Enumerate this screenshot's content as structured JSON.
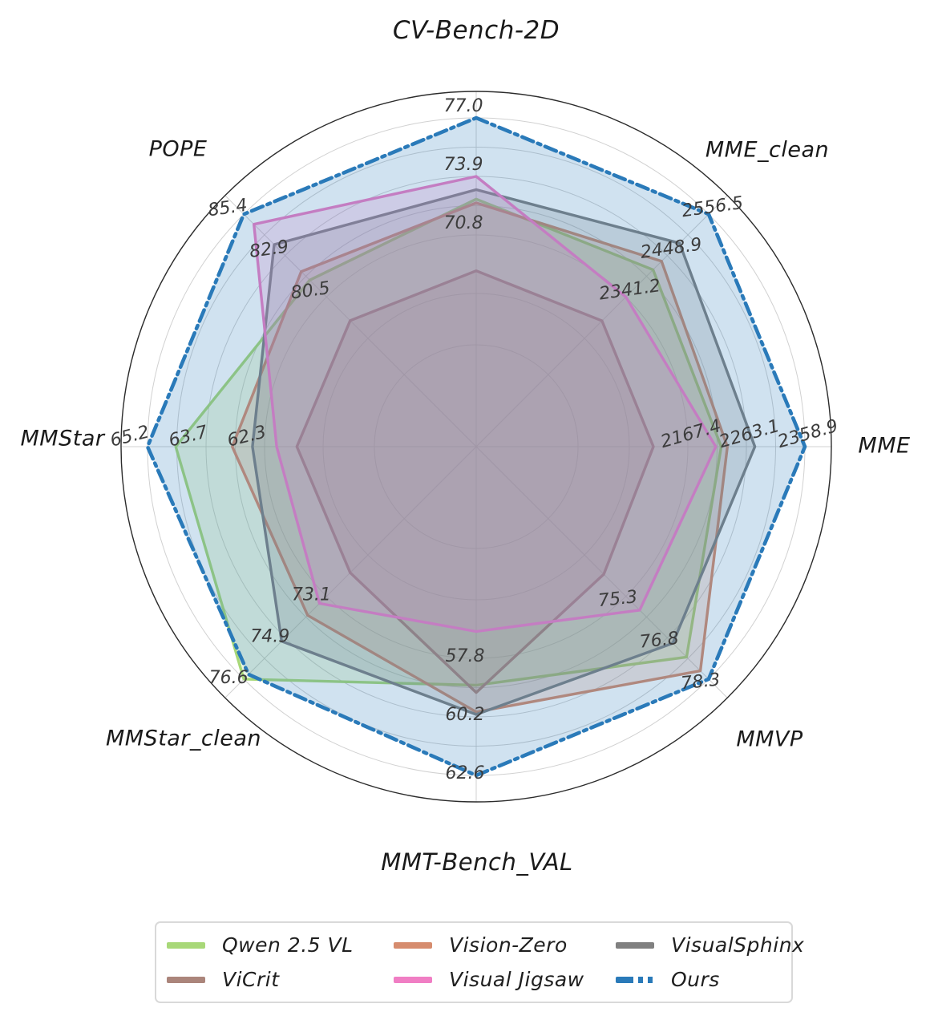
{
  "figure": {
    "background": "#ffffff"
  },
  "chart_data": {
    "type": "radar",
    "axes": [
      {
        "label": "CV-Bench-2D",
        "ticks": [
          "77.0",
          "73.9",
          "70.8"
        ]
      },
      {
        "label": "MME_clean",
        "ticks": [
          "2556.5",
          "2448.9",
          "2341.2"
        ]
      },
      {
        "label": "MME",
        "ticks": [
          "2358.9",
          "2263.1",
          "2167.4"
        ]
      },
      {
        "label": "MMVP",
        "ticks": [
          "78.3",
          "76.8",
          "75.3"
        ]
      },
      {
        "label": "MMT-Bench_VAL",
        "ticks": [
          "62.6",
          "60.2",
          "57.8"
        ]
      },
      {
        "label": "MMStar_clean",
        "ticks": [
          "76.6",
          "74.9",
          "73.1"
        ]
      },
      {
        "label": "MMStar",
        "ticks": [
          "65.2",
          "63.7",
          "62.3"
        ]
      },
      {
        "label": "POPE",
        "ticks": [
          "85.4",
          "82.9",
          "80.5"
        ]
      }
    ],
    "series": [
      {
        "name": "Qwen 2.5 VL",
        "color": "#a8d878",
        "line_style": "solid",
        "values": [
          72.7,
          2412.0,
          2222.0,
          77.5,
          58.9,
          76.6,
          64.5,
          81.5
        ]
      },
      {
        "name": "Vision-Zero",
        "color": "#d68c6e",
        "line_style": "solid",
        "values": [
          72.5,
          2434.0,
          2232.0,
          78.0,
          60.0,
          73.9,
          63.1,
          82.0
        ]
      },
      {
        "name": "VisualSphinx",
        "color": "#808080",
        "line_style": "solid",
        "values": [
          73.2,
          2481.0,
          2277.0,
          77.0,
          60.1,
          75.0,
          62.6,
          83.6
        ]
      },
      {
        "name": "ViCrit",
        "color": "#ab857b",
        "line_style": "solid",
        "values": [
          68.9,
          2279.0,
          2111.0,
          74.5,
          59.2,
          72.1,
          61.5,
          79.1
        ]
      },
      {
        "name": "Visual Jigsaw",
        "color": "#f07ec4",
        "line_style": "solid",
        "values": [
          73.9,
          2341.2,
          2213.0,
          75.8,
          56.7,
          73.4,
          62.0,
          84.8
        ]
      },
      {
        "name": "Ours",
        "color": "#2a7ab9",
        "line_style": "dash_dot",
        "values": [
          77.0,
          2556.5,
          2358.9,
          78.3,
          62.6,
          76.4,
          65.2,
          85.4
        ]
      }
    ],
    "grid": {
      "shape": "circular",
      "spokes": 8,
      "ring_color": "#c9c9c9",
      "outer_circle_color": "#2b2b2b",
      "fill_opacity": 0.22
    },
    "legend_position": "bottom"
  }
}
